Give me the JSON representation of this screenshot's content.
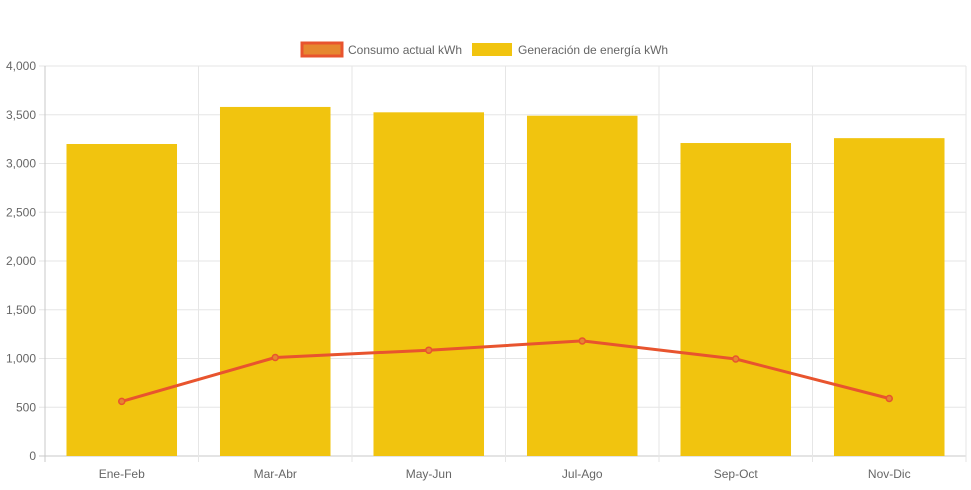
{
  "chart_data": {
    "type": "bar",
    "categories": [
      "Ene-Feb",
      "Mar-Abr",
      "May-Jun",
      "Jul-Ago",
      "Sep-Oct",
      "Nov-Dic"
    ],
    "series": [
      {
        "name": "Consumo actual kWh",
        "type": "line",
        "values": [
          560,
          1010,
          1085,
          1180,
          995,
          590
        ],
        "color": "#e8542e",
        "fill": "#e6872f"
      },
      {
        "name": "Generación de energía kWh",
        "type": "bar",
        "values": [
          3200,
          3580,
          3525,
          3490,
          3210,
          3260
        ],
        "color": "#f1c40f"
      }
    ],
    "y_ticks": [
      "0",
      "500",
      "1,000",
      "1,500",
      "2,000",
      "2,500",
      "3,000",
      "3,500",
      "4,000"
    ],
    "ylim": [
      0,
      4000
    ],
    "grid": true,
    "legend_position": "top-center"
  }
}
